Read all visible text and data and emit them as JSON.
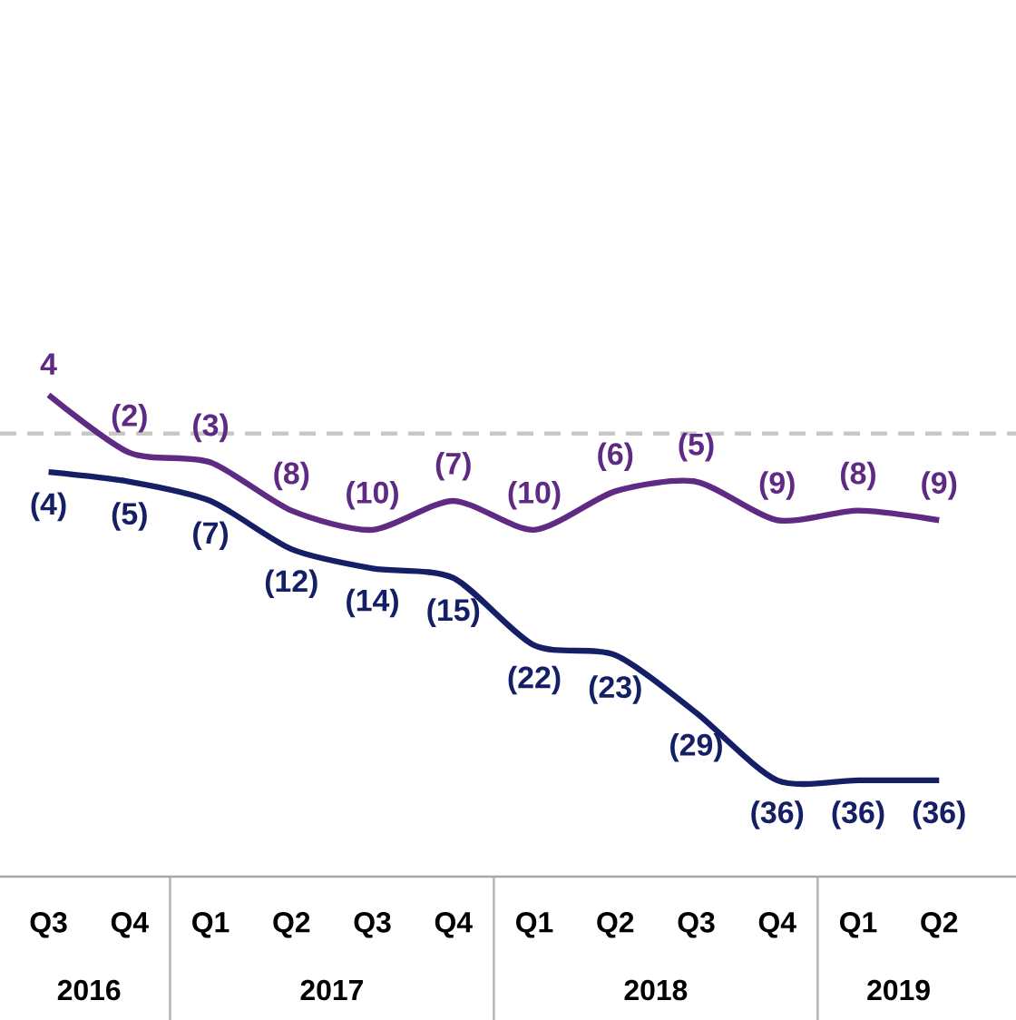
{
  "chart_data": {
    "type": "line",
    "categories": [
      "Q3",
      "Q4",
      "Q1",
      "Q2",
      "Q3",
      "Q4",
      "Q1",
      "Q2",
      "Q3",
      "Q4",
      "Q1",
      "Q2"
    ],
    "series": [
      {
        "color": "#5e2a84",
        "values": [
          4,
          -2,
          -3,
          -8,
          -10,
          -7,
          -10,
          -6,
          -5,
          -9,
          -8,
          -9
        ],
        "value_labels": [
          "4",
          "(2)",
          "(3)",
          "(8)",
          "(10)",
          "(7)",
          "(10)",
          "(6)",
          "(5)",
          "(9)",
          "(8)",
          "(9)"
        ]
      },
      {
        "color": "#141f66",
        "values": [
          -4,
          -5,
          -7,
          -12,
          -14,
          -15,
          -22,
          -23,
          -29,
          -36,
          -36,
          -36
        ],
        "value_labels": [
          "(4)",
          "(5)",
          "(7)",
          "(12)",
          "(14)",
          "(15)",
          "(22)",
          "(23)",
          "(29)",
          "(36)",
          "(36)",
          "(36)"
        ]
      }
    ],
    "ref_lines": [
      {
        "axis": "y",
        "value": 0,
        "color": "#c8c8c8",
        "line_style": "dashed"
      }
    ],
    "annotations": [
      "2016",
      "2017",
      "2018",
      "2019"
    ],
    "marker": "none",
    "line_style": "solid"
  }
}
